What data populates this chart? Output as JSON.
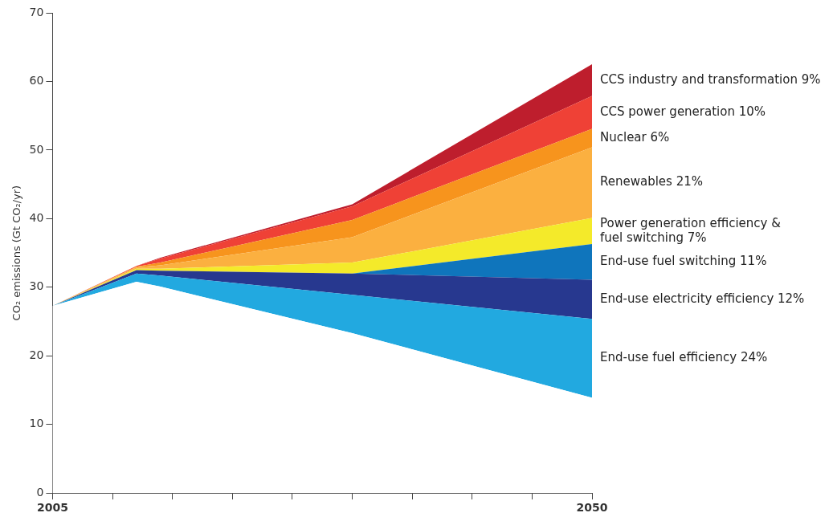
{
  "chart_data": {
    "type": "area",
    "stacked": true,
    "ylabel": "CO₂ emissions (Gt CO₂/yr)",
    "x": [
      2005,
      2012,
      2014,
      2030,
      2050
    ],
    "xlim": [
      2005,
      2050
    ],
    "xticks": [
      2005,
      {
        "value": 2010,
        "label": null
      },
      {
        "value": 2015,
        "label": null
      },
      {
        "value": 2020,
        "label": null
      },
      {
        "value": 2025,
        "label": null
      },
      {
        "value": 2030,
        "label": null
      },
      {
        "value": 2035,
        "label": null
      },
      {
        "value": 2040,
        "label": null
      },
      {
        "value": 2045,
        "label": null
      },
      2050
    ],
    "ylim": [
      0,
      70
    ],
    "yticks": [
      0,
      10,
      20,
      30,
      40,
      50,
      60,
      70
    ],
    "grid": false,
    "legend": false,
    "series": [
      {
        "color": "#ffffff",
        "values": [
          27.3,
          30.8,
          30.1,
          23.3,
          13.9
        ]
      },
      {
        "name": "End-use fuel efficiency 24%",
        "color": "#22a9e0",
        "values": [
          0,
          1.2,
          1.6,
          5.6,
          11.5
        ]
      },
      {
        "name": "End-use electricity efficiency 12%",
        "color": "#27388f",
        "values": [
          0,
          0.5,
          0.7,
          3.1,
          5.7
        ]
      },
      {
        "name": "End-use fuel switching 11%",
        "color": "#0f75bc",
        "values": [
          0,
          0,
          0,
          0,
          5.2
        ]
      },
      {
        "name": "Power generation efficiency & fuel switching 7%",
        "color": "#f4ea2a",
        "values": [
          0,
          0.2,
          0.3,
          1.6,
          3.8
        ]
      },
      {
        "name": "Renewables 21%",
        "color": "#fbb040",
        "values": [
          0,
          0.2,
          0.5,
          3.7,
          10.3
        ]
      },
      {
        "name": "Nuclear 6%",
        "color": "#f7941d",
        "values": [
          0,
          0.1,
          0.4,
          2.5,
          2.7
        ]
      },
      {
        "name": "CCS power generation 10%",
        "color": "#ef4136",
        "values": [
          0,
          0.1,
          0.6,
          2.0,
          4.8
        ]
      },
      {
        "name": "CCS industry and transformation 9%",
        "color": "#be1e2d",
        "values": [
          0,
          0,
          0.1,
          0.3,
          4.6
        ]
      }
    ]
  }
}
